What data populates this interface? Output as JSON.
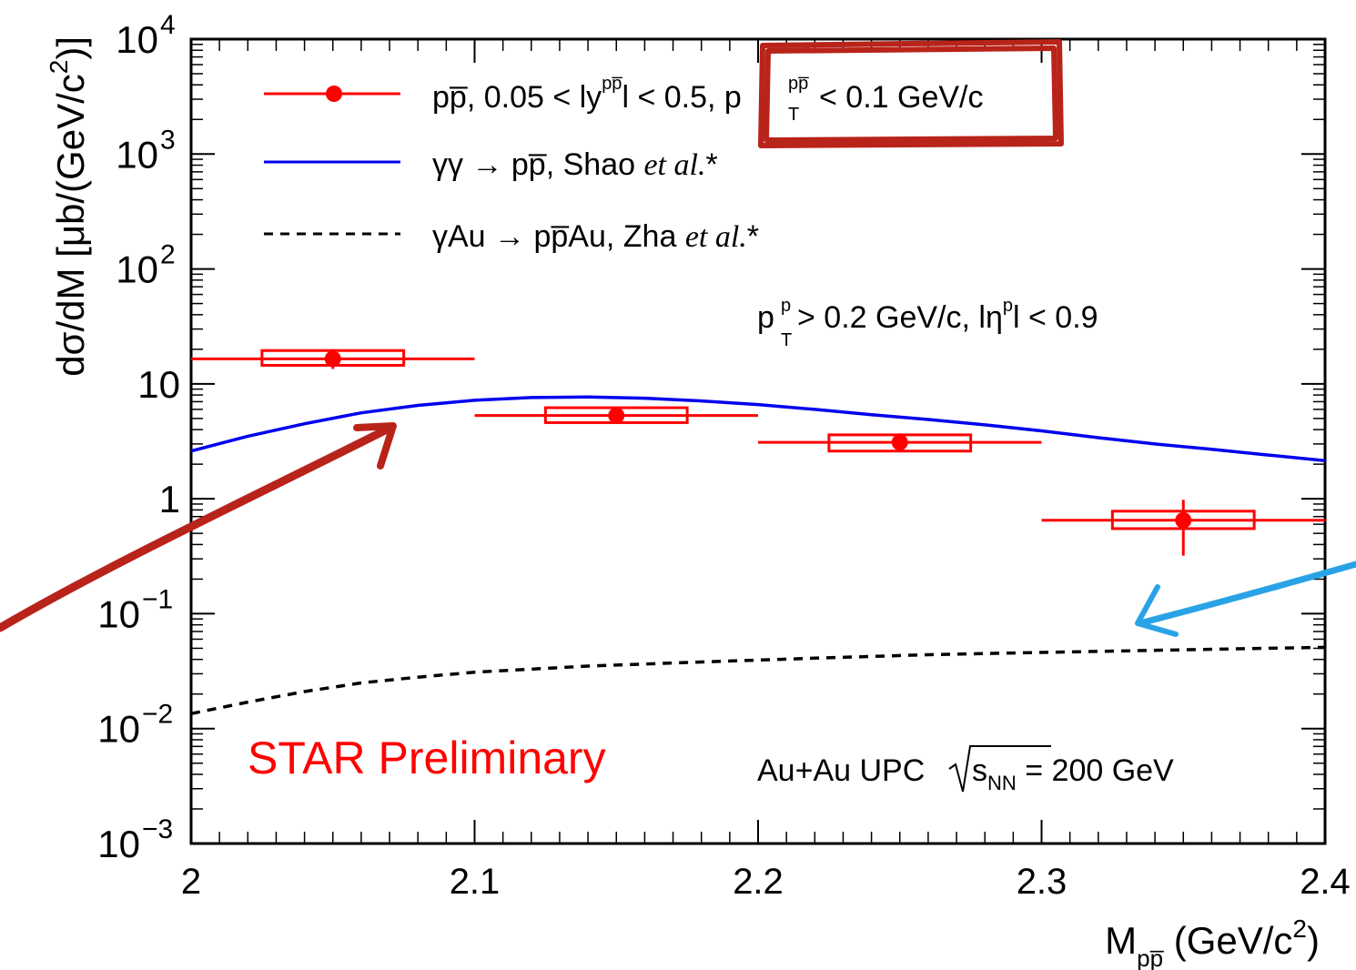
{
  "chart_data": {
    "type": "scatter",
    "x_scale": "linear",
    "y_scale": "log",
    "xlim": [
      2.0,
      2.4
    ],
    "ylim": [
      0.001,
      10000
    ],
    "grid": false,
    "legend_position": "top-left",
    "xlabel": {
      "main": "M",
      "sub": "pp̅",
      "unit_pre": " (GeV/c",
      "unit_sup": "2",
      "unit_post": ")"
    },
    "ylabel": {
      "pre": "dσ/dM [μb/(GeV/c",
      "sup": "2",
      "post": ")]"
    },
    "x_ticks": [
      "2",
      "2.1",
      "2.2",
      "2.3",
      "2.4"
    ],
    "x_tick_values": [
      2.0,
      2.1,
      2.2,
      2.3,
      2.4
    ],
    "y_ticks": [
      {
        "value": 0.001,
        "base": "10",
        "exp": "−3"
      },
      {
        "value": 0.01,
        "base": "10",
        "exp": "−2"
      },
      {
        "value": 0.1,
        "base": "10",
        "exp": "−1"
      },
      {
        "value": 1,
        "base": "1",
        "exp": ""
      },
      {
        "value": 10,
        "base": "10",
        "exp": ""
      },
      {
        "value": 100,
        "base": "10",
        "exp": "2"
      },
      {
        "value": 1000,
        "base": "10",
        "exp": "3"
      },
      {
        "value": 10000,
        "base": "10",
        "exp": "4"
      }
    ],
    "series": [
      {
        "kind": "data",
        "color": "#ff0000",
        "points": [
          {
            "x": 2.05,
            "y": 16.5,
            "xerr": [
              2.0,
              2.1
            ],
            "yerr": [
              13.5,
              20.0
            ],
            "sys": [
              2.025,
              2.075,
              14.5,
              19.5
            ]
          },
          {
            "x": 2.15,
            "y": 5.3,
            "xerr": [
              2.1,
              2.2
            ],
            "yerr": [
              4.6,
              6.1
            ],
            "sys": [
              2.125,
              2.175,
              4.6,
              6.2
            ]
          },
          {
            "x": 2.25,
            "y": 3.1,
            "xerr": [
              2.2,
              2.3
            ],
            "yerr": [
              2.6,
              3.7
            ],
            "sys": [
              2.225,
              2.275,
              2.6,
              3.6
            ]
          },
          {
            "x": 2.35,
            "y": 0.65,
            "xerr": [
              2.3,
              2.4
            ],
            "yerr": [
              0.32,
              0.98
            ],
            "sys": [
              2.325,
              2.375,
              0.55,
              0.78
            ]
          }
        ]
      },
      {
        "kind": "curve",
        "color": "#0000ee",
        "style": "solid",
        "points": [
          [
            2.0,
            2.6
          ],
          [
            2.02,
            3.5
          ],
          [
            2.04,
            4.5
          ],
          [
            2.06,
            5.6
          ],
          [
            2.08,
            6.5
          ],
          [
            2.1,
            7.2
          ],
          [
            2.12,
            7.6
          ],
          [
            2.14,
            7.7
          ],
          [
            2.16,
            7.5
          ],
          [
            2.18,
            7.1
          ],
          [
            2.2,
            6.6
          ],
          [
            2.22,
            6.0
          ],
          [
            2.24,
            5.4
          ],
          [
            2.26,
            4.9
          ],
          [
            2.28,
            4.4
          ],
          [
            2.3,
            3.9
          ],
          [
            2.32,
            3.4
          ],
          [
            2.34,
            3.0
          ],
          [
            2.36,
            2.7
          ],
          [
            2.38,
            2.4
          ],
          [
            2.4,
            2.15
          ]
        ]
      },
      {
        "kind": "curve",
        "color": "#000000",
        "style": "dashed",
        "points": [
          [
            2.0,
            0.0135
          ],
          [
            2.02,
            0.017
          ],
          [
            2.04,
            0.021
          ],
          [
            2.06,
            0.025
          ],
          [
            2.08,
            0.028
          ],
          [
            2.1,
            0.031
          ],
          [
            2.14,
            0.035
          ],
          [
            2.18,
            0.038
          ],
          [
            2.22,
            0.041
          ],
          [
            2.26,
            0.044
          ],
          [
            2.3,
            0.046
          ],
          [
            2.34,
            0.048
          ],
          [
            2.38,
            0.05
          ],
          [
            2.4,
            0.051
          ]
        ]
      }
    ],
    "legend": [
      {
        "parts": [
          "pp̅, 0.05 < ly",
          "pp̅",
          "l < 0.5, p",
          "pp̅",
          "T",
          " < 0.1 GeV/c"
        ]
      },
      {
        "pre": "γγ  → pp̅, Shao ",
        "italic": "et al.",
        "post": "*"
      },
      {
        "pre": "γAu → pp̅Au, Zha ",
        "italic": "et al.",
        "post": "*"
      }
    ],
    "annotations": {
      "cuts": {
        "p": "p",
        "sup1": "p",
        "sub1": "T",
        "mid": " > 0.2 GeV/c, lη",
        "sup2": "p",
        "post": "l < 0.9"
      },
      "preliminary": "STAR Preliminary",
      "system": {
        "pre": "Au+Au UPC ",
        "s": "s",
        "sub": "NN",
        "post": " = 200 GeV"
      }
    },
    "overlay_colors": {
      "box": "#b8231a",
      "arrow_red": "#b8231a",
      "arrow_blue": "#2aa3e6"
    }
  }
}
